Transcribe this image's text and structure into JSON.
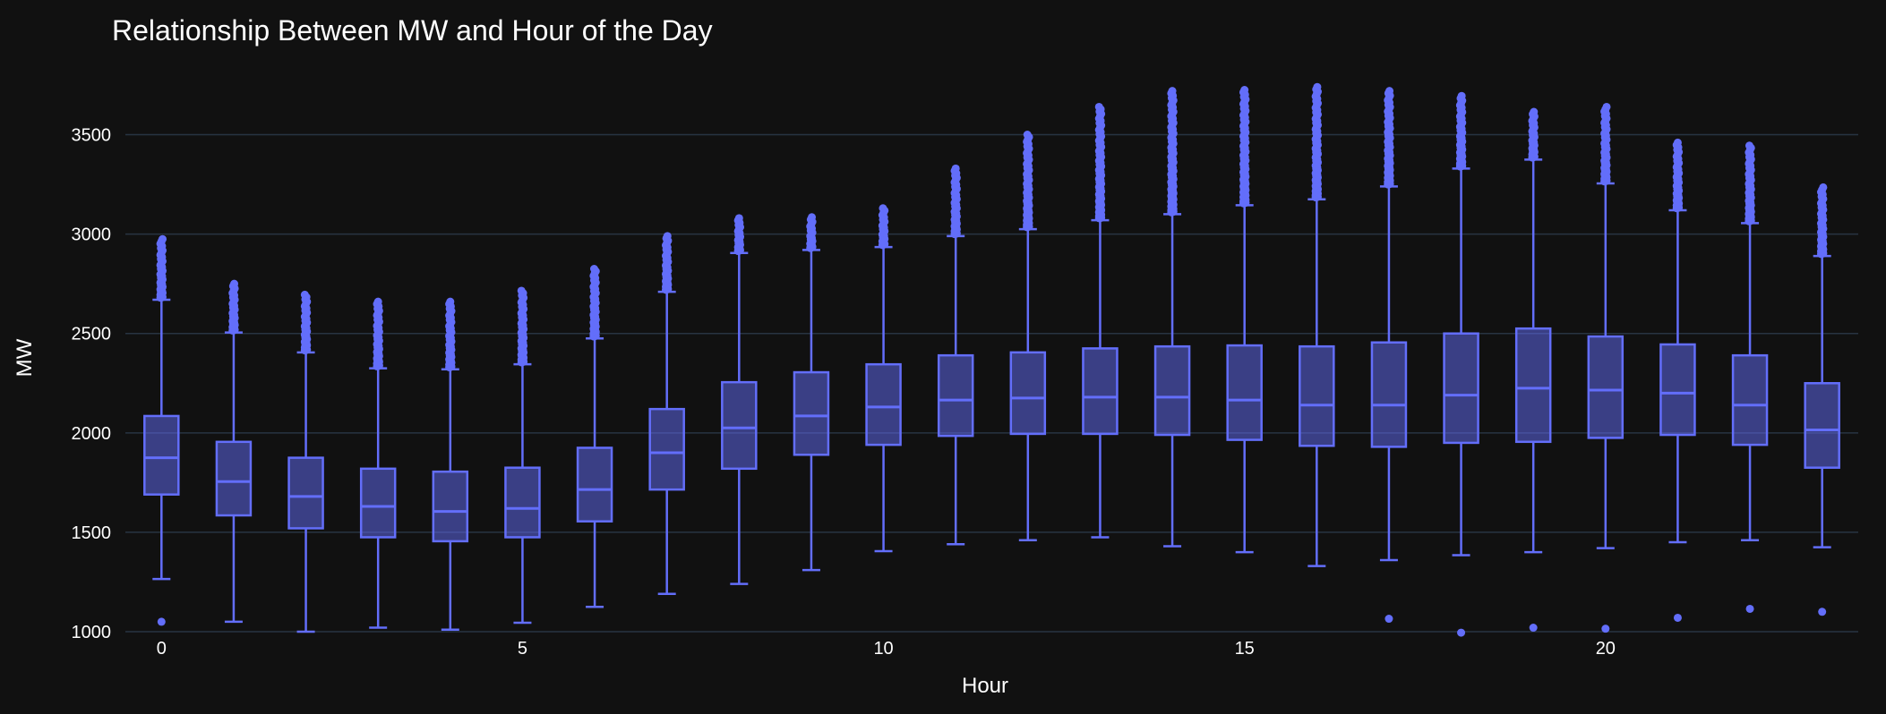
{
  "chart_data": {
    "type": "box",
    "title": "Relationship Between MW and Hour of the Day",
    "xlabel": "Hour",
    "ylabel": "MW",
    "xlim": [
      -0.5,
      23.5
    ],
    "ylim": [
      1000,
      3750
    ],
    "x_ticks": [
      0,
      5,
      10,
      15,
      20
    ],
    "y_ticks": [
      1000,
      1500,
      2000,
      2500,
      3000,
      3500
    ],
    "grid": true,
    "colors": {
      "background": "#111111",
      "grid": "#283442",
      "box_line": "#636efa",
      "box_fill": "rgba(99,110,250,0.5)"
    },
    "boxes": [
      {
        "x": 0,
        "lower": 1265,
        "q1": 1690,
        "median": 1875,
        "q3": 2085,
        "upper": 2670,
        "outlier_high": [
          2680,
          2975
        ],
        "outliers_low": [
          1050
        ]
      },
      {
        "x": 1,
        "lower": 1050,
        "q1": 1585,
        "median": 1755,
        "q3": 1955,
        "upper": 2505,
        "outlier_high": [
          2515,
          2750
        ],
        "outliers_low": []
      },
      {
        "x": 2,
        "lower": 1000,
        "q1": 1520,
        "median": 1680,
        "q3": 1875,
        "upper": 2405,
        "outlier_high": [
          2415,
          2695
        ],
        "outliers_low": []
      },
      {
        "x": 3,
        "lower": 1020,
        "q1": 1475,
        "median": 1630,
        "q3": 1820,
        "upper": 2325,
        "outlier_high": [
          2335,
          2660
        ],
        "outliers_low": []
      },
      {
        "x": 4,
        "lower": 1010,
        "q1": 1455,
        "median": 1605,
        "q3": 1805,
        "upper": 2320,
        "outlier_high": [
          2330,
          2660
        ],
        "outliers_low": []
      },
      {
        "x": 5,
        "lower": 1045,
        "q1": 1475,
        "median": 1620,
        "q3": 1825,
        "upper": 2345,
        "outlier_high": [
          2355,
          2715
        ],
        "outliers_low": []
      },
      {
        "x": 6,
        "lower": 1125,
        "q1": 1555,
        "median": 1715,
        "q3": 1925,
        "upper": 2475,
        "outlier_high": [
          2485,
          2825
        ],
        "outliers_low": []
      },
      {
        "x": 7,
        "lower": 1190,
        "q1": 1715,
        "median": 1900,
        "q3": 2120,
        "upper": 2710,
        "outlier_high": [
          2720,
          2990
        ],
        "outliers_low": []
      },
      {
        "x": 8,
        "lower": 1240,
        "q1": 1820,
        "median": 2025,
        "q3": 2255,
        "upper": 2905,
        "outlier_high": [
          2915,
          3080
        ],
        "outliers_low": []
      },
      {
        "x": 9,
        "lower": 1310,
        "q1": 1890,
        "median": 2085,
        "q3": 2305,
        "upper": 2920,
        "outlier_high": [
          2930,
          3085
        ],
        "outliers_low": []
      },
      {
        "x": 10,
        "lower": 1405,
        "q1": 1940,
        "median": 2130,
        "q3": 2345,
        "upper": 2935,
        "outlier_high": [
          2945,
          3130
        ],
        "outliers_low": []
      },
      {
        "x": 11,
        "lower": 1440,
        "q1": 1985,
        "median": 2165,
        "q3": 2390,
        "upper": 2990,
        "outlier_high": [
          3000,
          3330
        ],
        "outliers_low": []
      },
      {
        "x": 12,
        "lower": 1460,
        "q1": 1995,
        "median": 2175,
        "q3": 2405,
        "upper": 3025,
        "outlier_high": [
          3035,
          3500
        ],
        "outliers_low": []
      },
      {
        "x": 13,
        "lower": 1475,
        "q1": 1995,
        "median": 2180,
        "q3": 2425,
        "upper": 3070,
        "outlier_high": [
          3080,
          3640
        ],
        "outliers_low": []
      },
      {
        "x": 14,
        "lower": 1430,
        "q1": 1990,
        "median": 2180,
        "q3": 2435,
        "upper": 3100,
        "outlier_high": [
          3110,
          3720
        ],
        "outliers_low": []
      },
      {
        "x": 15,
        "lower": 1400,
        "q1": 1965,
        "median": 2165,
        "q3": 2440,
        "upper": 3145,
        "outlier_high": [
          3155,
          3725
        ],
        "outliers_low": []
      },
      {
        "x": 16,
        "lower": 1330,
        "q1": 1935,
        "median": 2140,
        "q3": 2435,
        "upper": 3175,
        "outlier_high": [
          3185,
          3740
        ],
        "outliers_low": []
      },
      {
        "x": 17,
        "lower": 1360,
        "q1": 1930,
        "median": 2140,
        "q3": 2455,
        "upper": 3240,
        "outlier_high": [
          3250,
          3720
        ],
        "outliers_low": [
          1065
        ]
      },
      {
        "x": 18,
        "lower": 1385,
        "q1": 1950,
        "median": 2190,
        "q3": 2500,
        "upper": 3330,
        "outlier_high": [
          3340,
          3695
        ],
        "outliers_low": [
          995
        ]
      },
      {
        "x": 19,
        "lower": 1400,
        "q1": 1955,
        "median": 2225,
        "q3": 2525,
        "upper": 3375,
        "outlier_high": [
          3385,
          3615
        ],
        "outliers_low": [
          1020
        ]
      },
      {
        "x": 20,
        "lower": 1420,
        "q1": 1975,
        "median": 2215,
        "q3": 2485,
        "upper": 3255,
        "outlier_high": [
          3265,
          3640
        ],
        "outliers_low": [
          1015
        ]
      },
      {
        "x": 21,
        "lower": 1450,
        "q1": 1990,
        "median": 2200,
        "q3": 2445,
        "upper": 3120,
        "outlier_high": [
          3130,
          3460
        ],
        "outliers_low": [
          1070
        ]
      },
      {
        "x": 22,
        "lower": 1460,
        "q1": 1940,
        "median": 2140,
        "q3": 2390,
        "upper": 3055,
        "outlier_high": [
          3065,
          3445
        ],
        "outliers_low": [
          1115
        ]
      },
      {
        "x": 23,
        "lower": 1425,
        "q1": 1825,
        "median": 2015,
        "q3": 2250,
        "upper": 2890,
        "outlier_high": [
          2900,
          3235
        ],
        "outliers_low": [
          1100
        ]
      }
    ]
  }
}
